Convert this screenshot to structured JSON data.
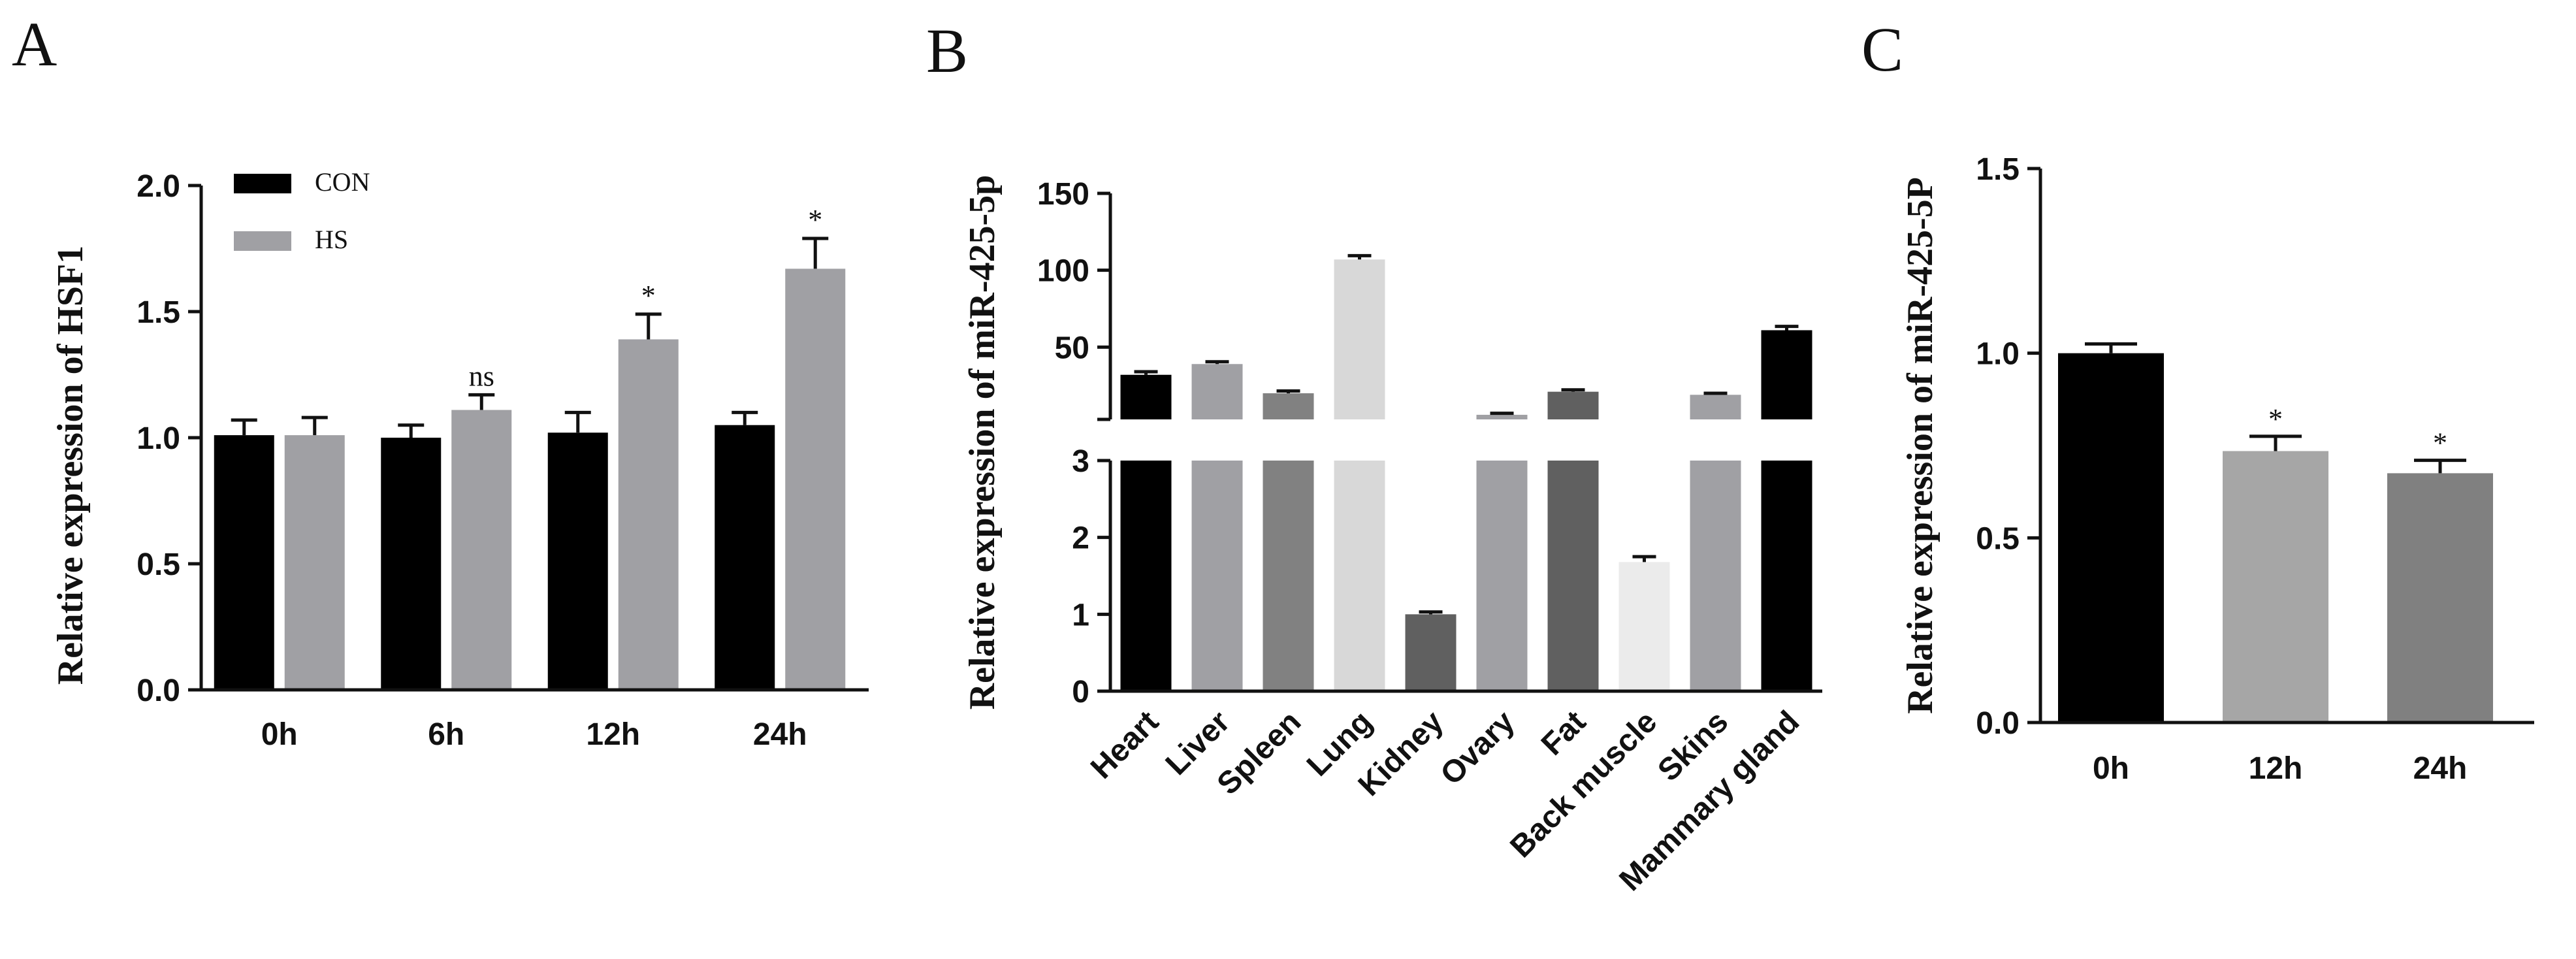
{
  "chart_data": [
    {
      "panel": "A",
      "type": "bar",
      "ylabel": "Relative expression of HSF1",
      "categories": [
        "0h",
        "6h",
        "12h",
        "24h"
      ],
      "ylim": [
        0,
        2.0
      ],
      "yticks": [
        "0.0",
        "0.5",
        "1.0",
        "1.5",
        "2.0"
      ],
      "yticks_values": [
        0,
        0.5,
        1.0,
        1.5,
        2.0
      ],
      "legend": [
        {
          "label": "CON",
          "color": "#000000"
        },
        {
          "label": "HS",
          "color": "#a0a0a4"
        }
      ],
      "series": [
        {
          "name": "CON",
          "color": "#000000",
          "values": [
            1.01,
            1.0,
            1.02,
            1.05
          ],
          "errors": [
            0.06,
            0.05,
            0.08,
            0.05
          ],
          "annotations": [
            "",
            "",
            "",
            ""
          ]
        },
        {
          "name": "HS",
          "color": "#a0a0a4",
          "values": [
            1.01,
            1.11,
            1.39,
            1.67
          ],
          "errors": [
            0.07,
            0.06,
            0.1,
            0.12
          ],
          "annotations": [
            "",
            "ns",
            "*",
            "*"
          ]
        }
      ]
    },
    {
      "panel": "B",
      "type": "bar",
      "ylabel": "Relative expression of miR-425-5p",
      "categories": [
        "Heart",
        "Liver",
        "Spleen",
        "Lung",
        "Kidney",
        "Ovary",
        "Fat",
        "Back muscle",
        "Skins",
        "Mammary gland"
      ],
      "axis_break": true,
      "ylim_lower": [
        0,
        3
      ],
      "ylim_upper": [
        3,
        150
      ],
      "yticks_lower": [
        "0",
        "1",
        "2",
        "3"
      ],
      "yticks_lower_values": [
        0,
        1,
        2,
        3
      ],
      "yticks_upper": [
        "50",
        "100",
        "150"
      ],
      "yticks_upper_values": [
        50,
        100,
        150
      ],
      "values": [
        32,
        39,
        20,
        107,
        1.0,
        6,
        21,
        1.68,
        19,
        61
      ],
      "errors": [
        2,
        1.5,
        1.5,
        2.5,
        0.03,
        1,
        1.2,
        0.07,
        1,
        2.5
      ],
      "colors": [
        "#000000",
        "#a0a0a4",
        "#818181",
        "#d8d8d8",
        "#606060",
        "#a0a0a4",
        "#606060",
        "#ebebeb",
        "#a0a0a4",
        "#000000"
      ]
    },
    {
      "panel": "C",
      "type": "bar",
      "ylabel": "Relative expression of miR-425-5P",
      "categories": [
        "0h",
        "12h",
        "24h"
      ],
      "ylim": [
        0,
        1.5
      ],
      "yticks": [
        "0.0",
        "0.5",
        "1.0",
        "1.5"
      ],
      "yticks_values": [
        0,
        0.5,
        1.0,
        1.5
      ],
      "values": [
        1.0,
        0.735,
        0.675
      ],
      "errors": [
        0.025,
        0.04,
        0.035
      ],
      "colors": [
        "#000000",
        "#a6a6a6",
        "#808080"
      ],
      "annotations": [
        "",
        "*",
        "*"
      ]
    }
  ]
}
